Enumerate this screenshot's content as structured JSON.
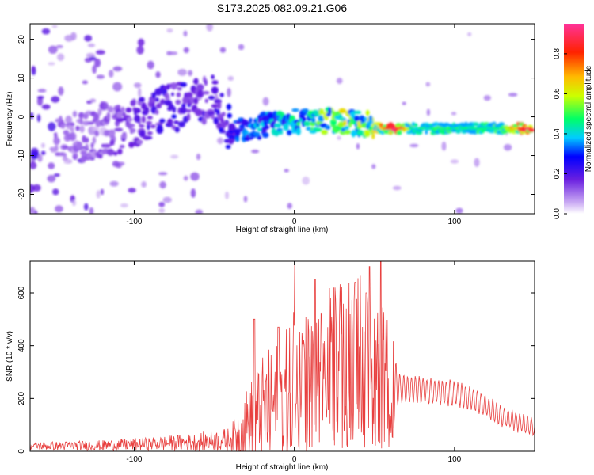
{
  "title": "S173.2025.082.09.21.G06",
  "chart_data": [
    {
      "type": "heatmap",
      "xlabel": "Height of straight line (km)",
      "ylabel": "Frequency (Hz)",
      "xlim": [
        -165,
        150
      ],
      "ylim": [
        -25,
        24
      ],
      "xticks": [
        -100,
        0,
        100
      ],
      "yticks": [
        -20,
        -10,
        0,
        10,
        20
      ],
      "colorbar": {
        "label": "Normalized spectral amplitude",
        "range": [
          0,
          0.95
        ],
        "ticks": [
          "0.0",
          "0.2",
          "0.4",
          "0.6",
          "0.8"
        ]
      },
      "ridge": [
        {
          "x": -130,
          "y": -5,
          "amp": 0.12
        },
        {
          "x": -115,
          "y": -4,
          "amp": 0.15
        },
        {
          "x": -100,
          "y": -2,
          "amp": 0.18
        },
        {
          "x": -90,
          "y": 0,
          "amp": 0.2
        },
        {
          "x": -80,
          "y": 2,
          "amp": 0.22
        },
        {
          "x": -70,
          "y": 3,
          "amp": 0.25
        },
        {
          "x": -60,
          "y": 4,
          "amp": 0.22
        },
        {
          "x": -50,
          "y": 5,
          "amp": 0.2
        },
        {
          "x": -40,
          "y": -4,
          "amp": 0.3
        },
        {
          "x": -30,
          "y": -3,
          "amp": 0.35
        },
        {
          "x": -15,
          "y": -2,
          "amp": 0.4
        },
        {
          "x": 0,
          "y": -1,
          "amp": 0.45
        },
        {
          "x": 15,
          "y": -1,
          "amp": 0.55
        },
        {
          "x": 30,
          "y": -1,
          "amp": 0.6
        },
        {
          "x": 45,
          "y": -2,
          "amp": 0.55
        },
        {
          "x": 55,
          "y": -3,
          "amp": 0.7
        },
        {
          "x": 62,
          "y": -3,
          "amp": 0.95
        },
        {
          "x": 75,
          "y": -3,
          "amp": 0.45
        },
        {
          "x": 90,
          "y": -3,
          "amp": 0.5
        },
        {
          "x": 110,
          "y": -3,
          "amp": 0.45
        },
        {
          "x": 130,
          "y": -3,
          "amp": 0.5
        },
        {
          "x": 143,
          "y": -3,
          "amp": 0.9
        }
      ]
    },
    {
      "type": "line",
      "xlabel": "Height of straight line (km)",
      "ylabel": "SNR (10 * v/v)",
      "xlim": [
        -165,
        150
      ],
      "ylim": [
        0,
        720
      ],
      "xticks": [
        -100,
        0,
        100
      ],
      "yticks": [
        0,
        200,
        400,
        600
      ],
      "color": "#e8403f",
      "envelope": [
        {
          "x": -165,
          "base": 20,
          "amp": 15
        },
        {
          "x": -120,
          "base": 22,
          "amp": 20
        },
        {
          "x": -90,
          "base": 28,
          "amp": 25
        },
        {
          "x": -60,
          "base": 35,
          "amp": 35
        },
        {
          "x": -40,
          "base": 45,
          "amp": 45
        },
        {
          "x": -30,
          "base": 90,
          "amp": 150
        },
        {
          "x": -20,
          "base": 140,
          "amp": 220
        },
        {
          "x": -10,
          "base": 180,
          "amp": 250
        },
        {
          "x": 0,
          "base": 200,
          "amp": 300
        },
        {
          "x": 10,
          "base": 240,
          "amp": 280
        },
        {
          "x": 20,
          "base": 280,
          "amp": 260
        },
        {
          "x": 30,
          "base": 320,
          "amp": 250
        },
        {
          "x": 40,
          "base": 340,
          "amp": 260
        },
        {
          "x": 50,
          "base": 300,
          "amp": 300
        },
        {
          "x": 60,
          "base": 240,
          "amp": 250
        },
        {
          "x": 65,
          "base": 240,
          "amp": 60
        },
        {
          "x": 80,
          "base": 230,
          "amp": 50
        },
        {
          "x": 100,
          "base": 220,
          "amp": 50
        },
        {
          "x": 115,
          "base": 190,
          "amp": 45
        },
        {
          "x": 130,
          "base": 130,
          "amp": 40
        },
        {
          "x": 150,
          "base": 90,
          "amp": 35
        }
      ],
      "spikes": [
        {
          "x": 0,
          "y": 720
        },
        {
          "x": 13,
          "y": 650
        },
        {
          "x": 25,
          "y": 620
        },
        {
          "x": 38,
          "y": 640
        },
        {
          "x": 45,
          "y": 600
        },
        {
          "x": 54,
          "y": 720
        },
        {
          "x": 47,
          "y": 700
        },
        {
          "x": -25,
          "y": 500
        },
        {
          "x": -10,
          "y": 470
        }
      ]
    }
  ]
}
